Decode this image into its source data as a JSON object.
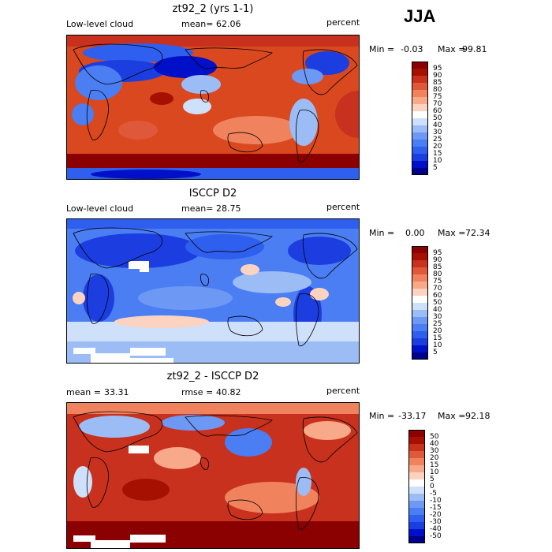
{
  "season": "JJA",
  "colors": {
    "fill_95": "#8b0000",
    "fill_50": "#ffffff",
    "fill_5": "#00008b"
  },
  "chart_data": [
    {
      "type": "heatmap",
      "title": "zt92_2 (yrs 1-1)",
      "variable": "Low-level cloud",
      "stat_label": "mean=",
      "stat_value": "62.06",
      "units": "percent",
      "min_label": "Min =",
      "min_value": "-0.03",
      "max_label": "Max =",
      "max_value": "99.81",
      "levels": [
        5,
        10,
        15,
        20,
        25,
        30,
        40,
        50,
        60,
        70,
        75,
        80,
        85,
        90,
        95
      ],
      "palette": [
        "#00008b",
        "#0010c8",
        "#1c3ee0",
        "#2f5fee",
        "#4a7ef2",
        "#6d98f4",
        "#9cbcf6",
        "#cfe0fa",
        "#ffffff",
        "#fcd3c0",
        "#f7a98a",
        "#f0835e",
        "#e0583a",
        "#c8311d",
        "#a51000",
        "#8b0000"
      ],
      "grid": false,
      "legend": "right"
    },
    {
      "type": "heatmap",
      "title": "ISCCP D2",
      "variable": "Low-level cloud",
      "stat_label": "mean=",
      "stat_value": "28.75",
      "units": "percent",
      "min_label": "Min =",
      "min_value": "0.00",
      "max_label": "Max =",
      "max_value": "72.34",
      "levels": [
        5,
        10,
        15,
        20,
        25,
        30,
        40,
        50,
        60,
        70,
        75,
        80,
        85,
        90,
        95
      ],
      "palette": [
        "#00008b",
        "#0010c8",
        "#1c3ee0",
        "#2f5fee",
        "#4a7ef2",
        "#6d98f4",
        "#9cbcf6",
        "#cfe0fa",
        "#ffffff",
        "#fcd3c0",
        "#f7a98a",
        "#f0835e",
        "#e0583a",
        "#c8311d",
        "#a51000",
        "#8b0000"
      ],
      "grid": false,
      "legend": "right"
    },
    {
      "type": "heatmap",
      "title": "zt92_2 - ISCCP D2",
      "variable": "",
      "stat_label": "mean =",
      "stat_value": "33.31",
      "stat2_label": "rmse =",
      "stat2_value": "40.82",
      "units": "percent",
      "min_label": "Min =",
      "min_value": "-33.17",
      "max_label": "Max =",
      "max_value": "92.18",
      "levels": [
        -50,
        -40,
        -30,
        -20,
        -15,
        -10,
        -5,
        0,
        5,
        10,
        15,
        20,
        30,
        40,
        50
      ],
      "palette": [
        "#00008b",
        "#0010c8",
        "#1c3ee0",
        "#2f5fee",
        "#4a7ef2",
        "#6d98f4",
        "#9cbcf6",
        "#cfe0fa",
        "#ffffff",
        "#fcd3c0",
        "#f7a98a",
        "#f0835e",
        "#e0583a",
        "#c8311d",
        "#a51000",
        "#8b0000"
      ],
      "grid": false,
      "legend": "right"
    }
  ]
}
